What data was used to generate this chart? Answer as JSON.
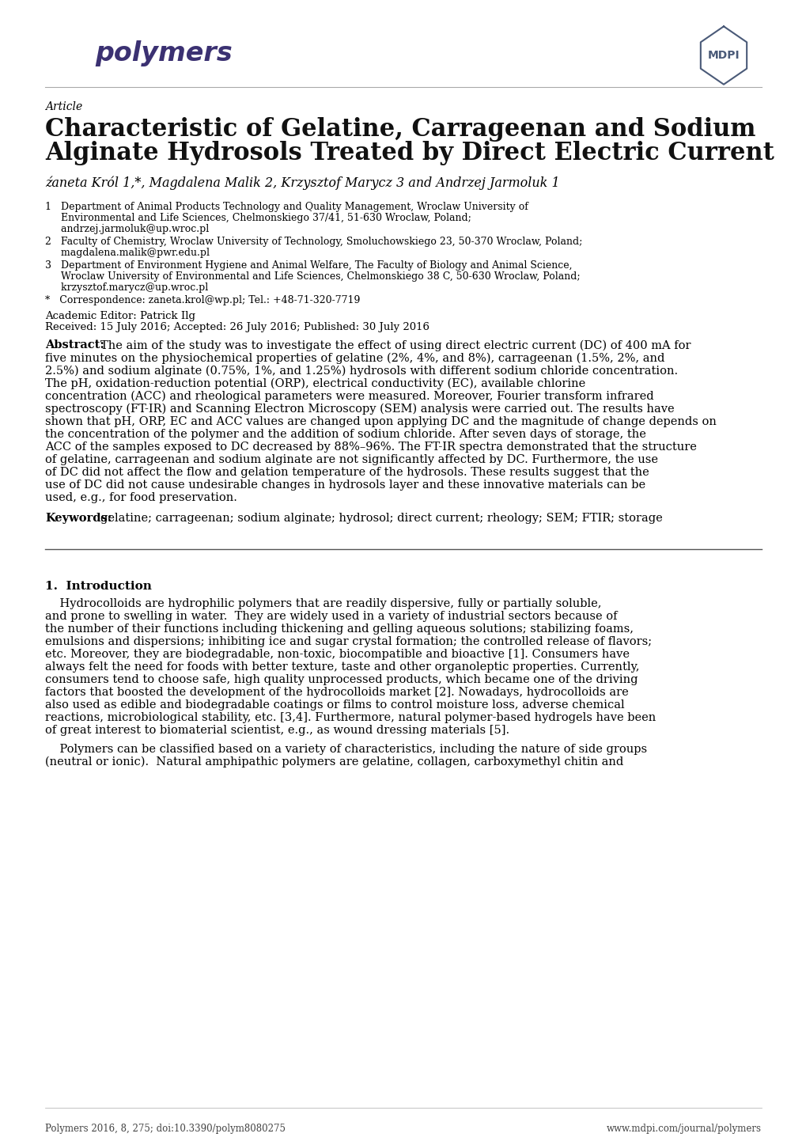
{
  "title_line1": "Characteristic of Gelatine, Carrageenan and Sodium",
  "title_line2": "Alginate Hydrosols Treated by Direct Electric Current",
  "article_label": "Article",
  "authors": "źaneta Król 1,*, Magdalena Malik 2, Krzysztof Marycz 3 and Andrzej Jarmoluk 1",
  "affil_1a": "1   Department of Animal Products Technology and Quality Management, Wroclaw University of",
  "affil_1b": "     Environmental and Life Sciences, Chelmonskiego 37/41, 51-630 Wroclaw, Poland;",
  "affil_1c": "     andrzej.jarmoluk@up.wroc.pl",
  "affil_2a": "2   Faculty of Chemistry, Wroclaw University of Technology, Smoluchowskiego 23, 50-370 Wroclaw, Poland;",
  "affil_2b": "     magdalena.malik@pwr.edu.pl",
  "affil_3a": "3   Department of Environment Hygiene and Animal Welfare, The Faculty of Biology and Animal Science,",
  "affil_3b": "     Wroclaw University of Environmental and Life Sciences, Chelmonskiego 38 C, 50-630 Wroclaw, Poland;",
  "affil_3c": "     krzysztof.marycz@up.wroc.pl",
  "affil_star": "*   Correspondence: zaneta.krol@wp.pl; Tel.: +48-71-320-7719",
  "editor": "Academic Editor: Patrick Ilg",
  "received": "Received: 15 July 2016; Accepted: 26 July 2016; Published: 30 July 2016",
  "abstract_label": "Abstract:",
  "abstract_text": "The aim of the study was to investigate the effect of using direct electric current (DC) of 400 mA for five minutes on the physiochemical properties of gelatine (2%, 4%, and 8%), carrageenan (1.5%, 2%, and 2.5%) and sodium alginate (0.75%, 1%, and 1.25%) hydrosols with different sodium chloride concentration. The pH, oxidation-reduction potential (ORP), electrical conductivity (EC), available chlorine concentration (ACC) and rheological parameters were measured. Moreover, Fourier transform infrared spectroscopy (FT-IR) and Scanning Electron Microscopy (SEM) analysis were carried out. The results have shown that pH, ORP, EC and ACC values are changed upon applying DC and the magnitude of change depends on the concentration of the polymer and the addition of sodium chloride. After seven days of storage, the ACC of the samples exposed to DC decreased by 88%–96%. The FT-IR spectra demonstrated that the structure of gelatine, carrageenan and sodium alginate are not significantly affected by DC. Furthermore, the use of DC did not affect the flow and gelation temperature of the hydrosols. These results suggest that the use of DC did not cause undesirable changes in hydrosols layer and these innovative materials can be used, e.g., for food preservation.",
  "keywords_label": "Keywords:",
  "keywords_text": "gelatine; carrageenan; sodium alginate; hydrosol; direct current; rheology; SEM; FTIR; storage",
  "section1": "1.  Introduction",
  "intro_p1_l01": "Hydrocolloids are hydrophilic polymers that are readily dispersive, fully or partially soluble,",
  "intro_p1_l02": "and prone to swelling in water.  They are widely used in a variety of industrial sectors because of",
  "intro_p1_l03": "the number of their functions including thickening and gelling aqueous solutions; stabilizing foams,",
  "intro_p1_l04": "emulsions and dispersions; inhibiting ice and sugar crystal formation; the controlled release of flavors;",
  "intro_p1_l05": "etc. Moreover, they are biodegradable, non-toxic, biocompatible and bioactive [1]. Consumers have",
  "intro_p1_l06": "always felt the need for foods with better texture, taste and other organoleptic properties. Currently,",
  "intro_p1_l07": "consumers tend to choose safe, high quality unprocessed products, which became one of the driving",
  "intro_p1_l08": "factors that boosted the development of the hydrocolloids market [2]. Nowadays, hydrocolloids are",
  "intro_p1_l09": "also used as edible and biodegradable coatings or films to control moisture loss, adverse chemical",
  "intro_p1_l10": "reactions, microbiological stability, etc. [3,4]. Furthermore, natural polymer-based hydrogels have been",
  "intro_p1_l11": "of great interest to biomaterial scientist, e.g., as wound dressing materials [5].",
  "intro_p2_l01": "Polymers can be classified based on a variety of characteristics, including the nature of side groups",
  "intro_p2_l02": "(neutral or ionic).  Natural amphipathic polymers are gelatine, collagen, carboxymethyl chitin and",
  "footer_left": "Polymers 2016, 8, 275; doi:10.3390/polym8080275",
  "footer_right": "www.mdpi.com/journal/polymers",
  "bg_color": "#ffffff",
  "text_color": "#000000",
  "logo_color": "#3b3172",
  "mdpi_color": "#4a5a78"
}
